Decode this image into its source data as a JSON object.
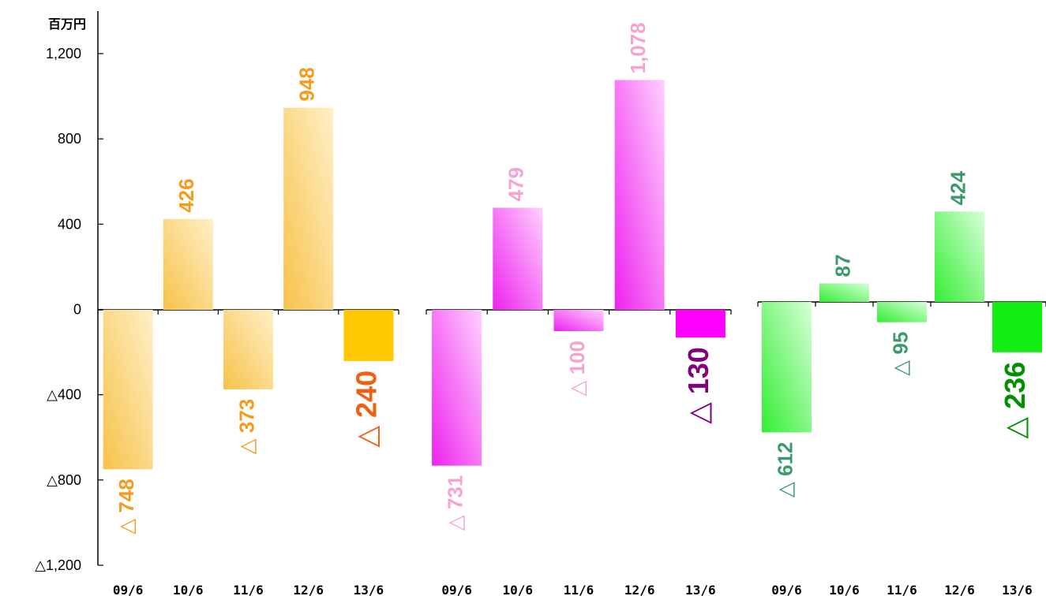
{
  "chart_data": {
    "type": "bar",
    "unit": "百万円",
    "y_ticks": [
      "1,200",
      "800",
      "400",
      "0",
      "△400",
      "△800",
      "△1,200"
    ],
    "y_tick_values": [
      1200,
      800,
      400,
      0,
      -400,
      -800,
      -1200
    ],
    "ylim": [
      -1200,
      1200
    ],
    "grid": false,
    "legend": "none",
    "panels": [
      {
        "categories": [
          "09/6",
          "10/6",
          "11/6",
          "12/6",
          "13/6"
        ],
        "values": [
          -748,
          426,
          -373,
          948,
          -240
        ],
        "labels": [
          "△ 748",
          "426",
          "△ 373",
          "948",
          "△ 240"
        ],
        "colors": {
          "bar_light": "#fff0c8",
          "bar_dark": "#f7c24a",
          "bar_solid": "#ffc800",
          "label": "#f59a1a",
          "label_highlight": "#f06010"
        }
      },
      {
        "categories": [
          "09/6",
          "10/6",
          "11/6",
          "12/6",
          "13/6"
        ],
        "values": [
          -731,
          479,
          -100,
          1078,
          -130
        ],
        "labels": [
          "△ 731",
          "479",
          "△ 100",
          "1,078",
          "△ 130"
        ],
        "colors": {
          "bar_light": "#ffd0ff",
          "bar_dark": "#ee22ee",
          "bar_solid": "#ff00ff",
          "label": "#f7a3d0",
          "label_highlight": "#800080"
        }
      },
      {
        "categories": [
          "09/6",
          "10/6",
          "11/6",
          "12/6",
          "13/6"
        ],
        "values": [
          -612,
          87,
          -95,
          424,
          -236
        ],
        "labels": [
          "△ 612",
          "87",
          "△ 95",
          "424",
          "△ 236"
        ],
        "colors": {
          "bar_light": "#d8ffd8",
          "bar_dark": "#33ee33",
          "bar_solid": "#11ee11",
          "label": "#3a9a6a",
          "label_highlight": "#009000"
        }
      }
    ]
  }
}
